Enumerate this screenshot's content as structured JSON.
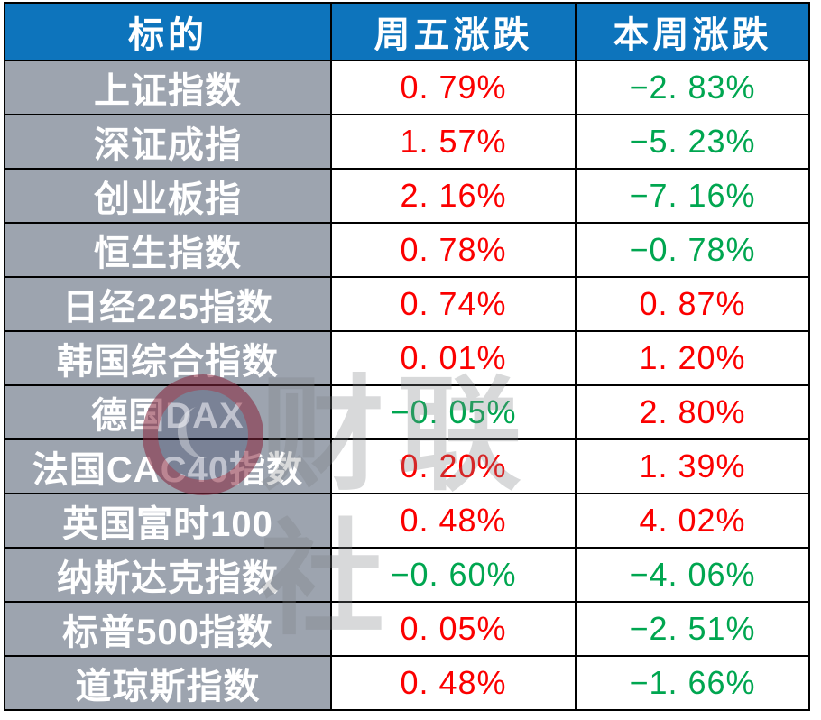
{
  "watermark": {
    "text": "财联社",
    "logo": "cailian-press-logo"
  },
  "colors": {
    "header_bg": "#0d74bc",
    "label_bg": "#9da4af",
    "up": "#fb0000",
    "down": "#00a650",
    "border": "#000000",
    "header_text": "#ffffff"
  },
  "table": {
    "headers": [
      "标的",
      "周五涨跌",
      "本周涨跌"
    ],
    "rows": [
      {
        "name": "上证指数",
        "friday": "0. 79%",
        "friday_dir": "up",
        "week": "−2. 83%",
        "week_dir": "down"
      },
      {
        "name": "深证成指",
        "friday": "1. 57%",
        "friday_dir": "up",
        "week": "−5. 23%",
        "week_dir": "down"
      },
      {
        "name": "创业板指",
        "friday": "2. 16%",
        "friday_dir": "up",
        "week": "−7. 16%",
        "week_dir": "down"
      },
      {
        "name": "恒生指数",
        "friday": "0. 78%",
        "friday_dir": "up",
        "week": "−0. 78%",
        "week_dir": "down"
      },
      {
        "name": "日经225指数",
        "friday": "0. 74%",
        "friday_dir": "up",
        "week": "0. 87%",
        "week_dir": "up"
      },
      {
        "name": "韩国综合指数",
        "friday": "0. 01%",
        "friday_dir": "up",
        "week": "1. 20%",
        "week_dir": "up"
      },
      {
        "name": "德国DAX",
        "friday": "−0. 05%",
        "friday_dir": "down",
        "week": "2. 80%",
        "week_dir": "up"
      },
      {
        "name": "法国CAC40指数",
        "friday": "0. 20%",
        "friday_dir": "up",
        "week": "1. 39%",
        "week_dir": "up"
      },
      {
        "name": "英国富时100",
        "friday": "0. 48%",
        "friday_dir": "up",
        "week": "4. 02%",
        "week_dir": "up"
      },
      {
        "name": "纳斯达克指数",
        "friday": "−0. 60%",
        "friday_dir": "down",
        "week": "−4. 06%",
        "week_dir": "down"
      },
      {
        "name": "标普500指数",
        "friday": "0. 05%",
        "friday_dir": "up",
        "week": "−2. 51%",
        "week_dir": "down"
      },
      {
        "name": "道琼斯指数",
        "friday": "0. 48%",
        "friday_dir": "up",
        "week": "−1. 66%",
        "week_dir": "down"
      }
    ]
  },
  "chart_data": {
    "type": "table",
    "title": "",
    "columns": [
      "标的",
      "周五涨跌",
      "本周涨跌"
    ],
    "rows": [
      [
        "上证指数",
        "0.79%",
        "-2.83%"
      ],
      [
        "深证成指",
        "1.57%",
        "-5.23%"
      ],
      [
        "创业板指",
        "2.16%",
        "-7.16%"
      ],
      [
        "恒生指数",
        "0.78%",
        "-0.78%"
      ],
      [
        "日经225指数",
        "0.74%",
        "0.87%"
      ],
      [
        "韩国综合指数",
        "0.01%",
        "1.20%"
      ],
      [
        "德国DAX",
        "-0.05%",
        "2.80%"
      ],
      [
        "法国CAC40指数",
        "0.20%",
        "1.39%"
      ],
      [
        "英国富时100",
        "0.48%",
        "4.02%"
      ],
      [
        "纳斯达克指数",
        "-0.60%",
        "-4.06%"
      ],
      [
        "标普500指数",
        "0.05%",
        "-2.51%"
      ],
      [
        "道琼斯指数",
        "0.48%",
        "-1.66%"
      ]
    ],
    "color_coding": "red #fb0000 = rise (positive), green #00a650 = fall (negative)"
  }
}
